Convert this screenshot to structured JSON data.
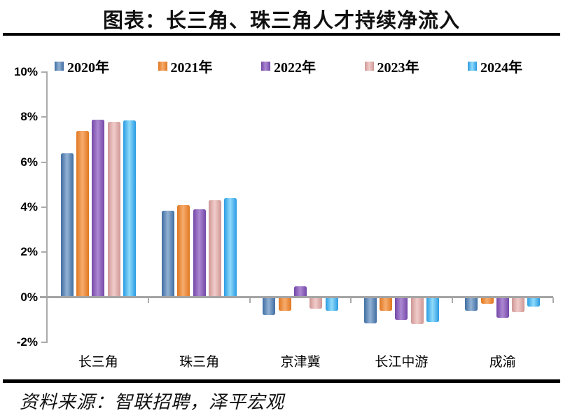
{
  "header": {
    "title": "图表：长三角、珠三角人才持续净流入"
  },
  "footer": {
    "source": "资料来源：智联招聘，泽平宏观"
  },
  "chart_data": {
    "type": "bar",
    "title": "图表：长三角、珠三角人才持续净流入",
    "categories": [
      "长三角",
      "珠三角",
      "京津冀",
      "长江中游",
      "成渝"
    ],
    "series": [
      {
        "name": "2020年",
        "values": [
          6.4,
          3.85,
          -0.8,
          -1.15,
          -0.6
        ],
        "edge": "#3F6DA2",
        "mid": "#93B2D4"
      },
      {
        "name": "2021年",
        "values": [
          7.4,
          4.1,
          -0.6,
          -0.6,
          -0.3
        ],
        "edge": "#E0771F",
        "mid": "#F7AC6E"
      },
      {
        "name": "2022年",
        "values": [
          7.9,
          3.9,
          0.5,
          -1.0,
          -0.9
        ],
        "edge": "#7448A8",
        "mid": "#AC88D2"
      },
      {
        "name": "2023年",
        "values": [
          7.8,
          4.3,
          -0.5,
          -1.2,
          -0.65
        ],
        "edge": "#CE9795",
        "mid": "#F0CCCA"
      },
      {
        "name": "2024年",
        "values": [
          7.85,
          4.4,
          -0.6,
          -1.1,
          -0.4
        ],
        "edge": "#2B9BE2",
        "mid": "#90DBFB"
      }
    ],
    "xlabel": "",
    "ylabel": "",
    "unit": "%",
    "ylim": [
      -2,
      10
    ],
    "ytick_step": 2,
    "ytick_labels": [
      "10%",
      "8%",
      "6%",
      "4%",
      "2%",
      "0%",
      "-2%"
    ],
    "grid": false,
    "legend_position": "top",
    "axis_color": "#ABABAB",
    "zero_line_color": "#A4A4A4"
  }
}
